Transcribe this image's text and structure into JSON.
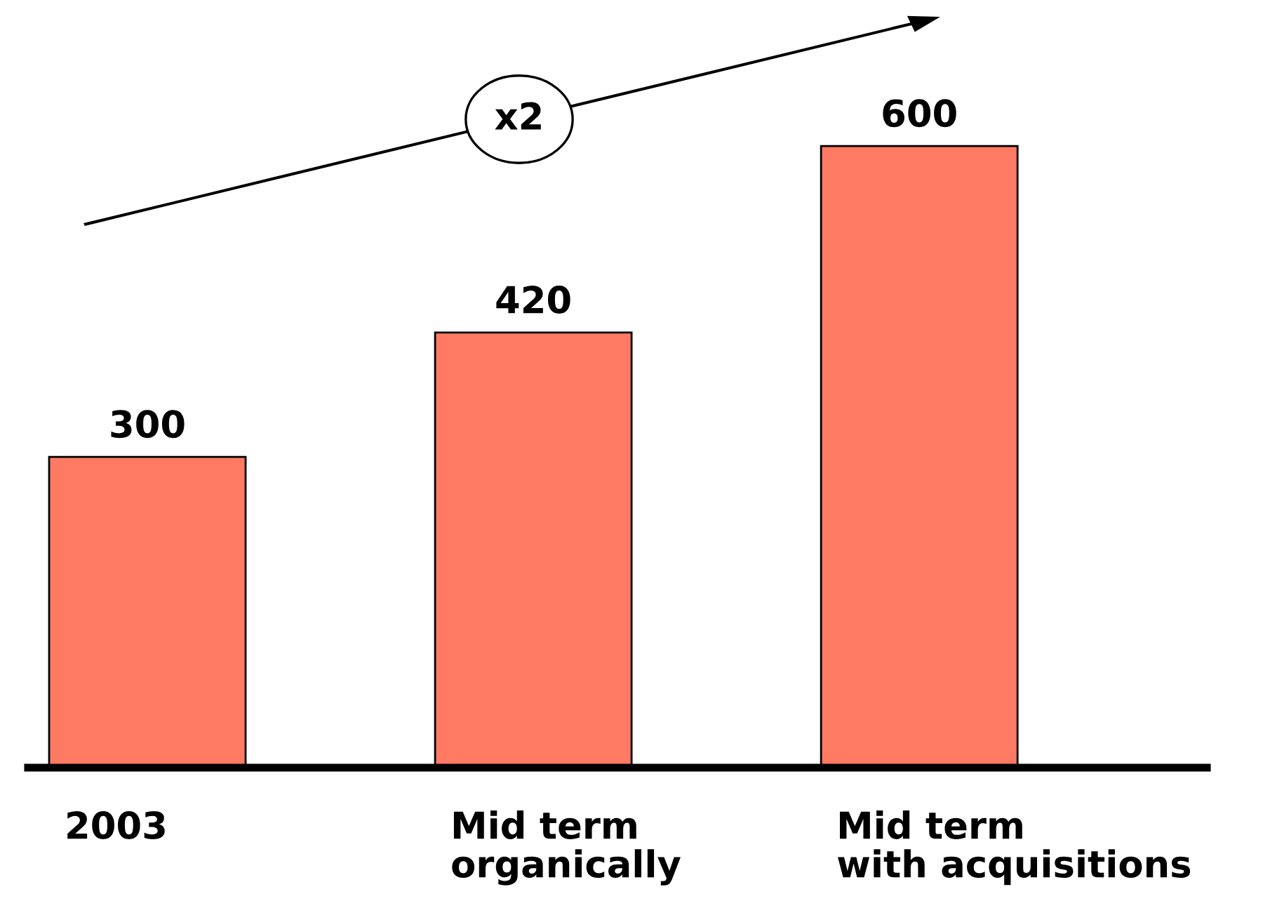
{
  "chart_data": {
    "type": "bar",
    "categories": [
      "2003",
      "Mid term\norganically",
      "Mid term\nwith acquisitions"
    ],
    "values": [
      300,
      420,
      600
    ],
    "color": "#ff7a63",
    "data_labels": true,
    "annotations": [
      "x2"
    ]
  }
}
